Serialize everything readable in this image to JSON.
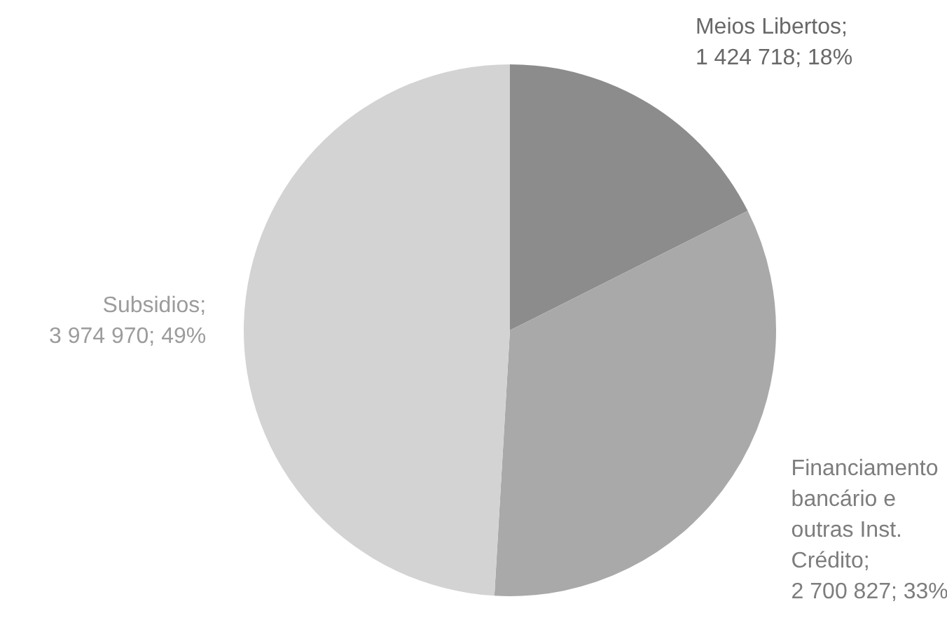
{
  "chart_data": {
    "type": "pie",
    "categories": [
      "Meios Libertos",
      "Financiamento bancário e outras Inst. Crédito",
      "Subsidios"
    ],
    "values": [
      1424718,
      2700827,
      3974970
    ],
    "value_labels": [
      ";\n1 424 718; 18%",
      ";\n2 700 827; 33%",
      ";\n3 974 970; 49%"
    ],
    "colors": [
      "#8c8c8c",
      "#a9a9a9",
      "#d3d3d3"
    ]
  }
}
